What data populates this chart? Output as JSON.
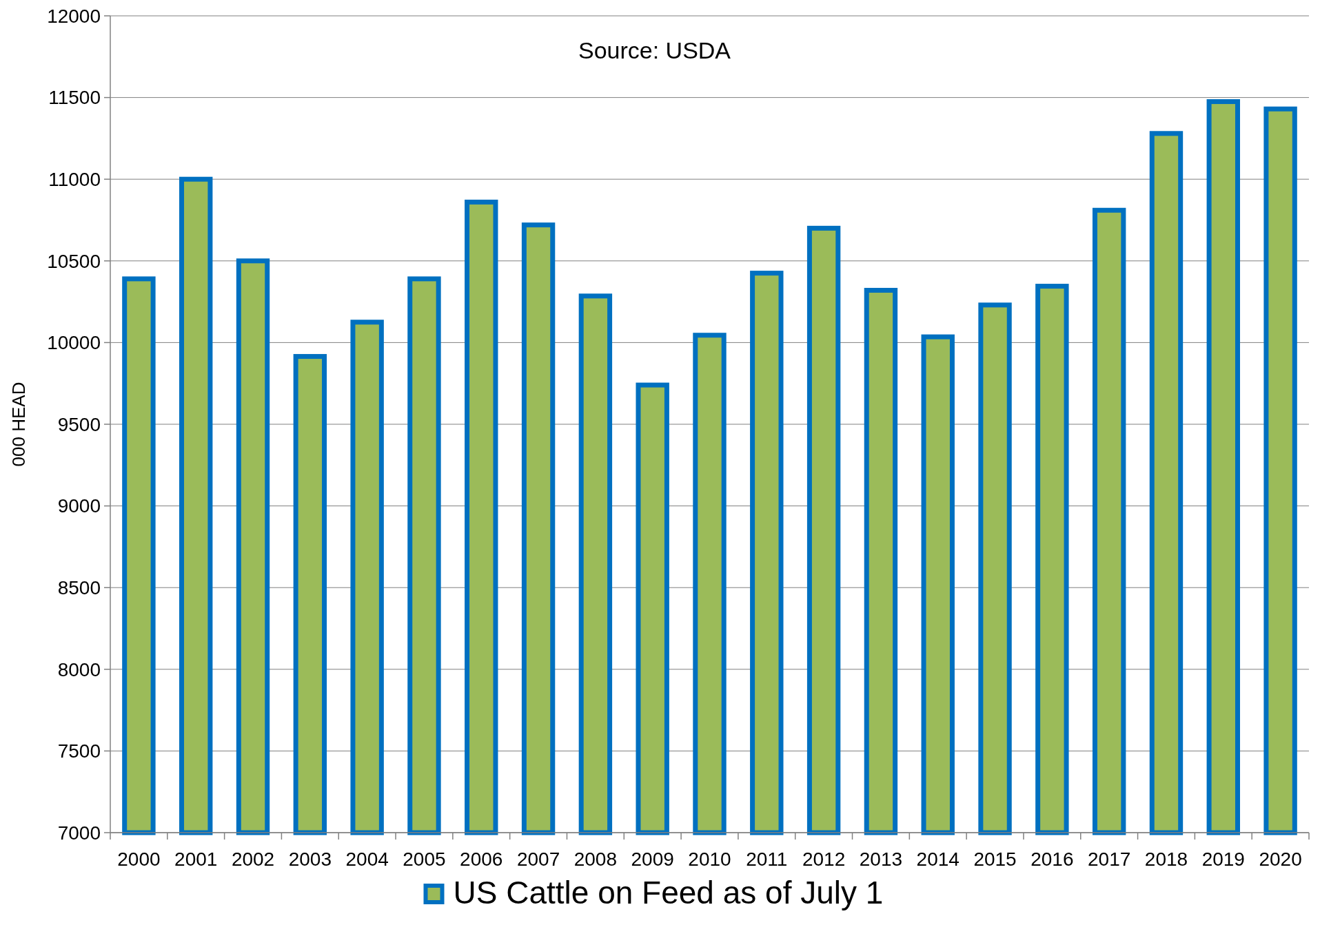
{
  "chart_data": {
    "type": "bar",
    "ylabel": "000 HEAD",
    "annotations": [
      "Source: USDA"
    ],
    "categories": [
      "2000",
      "2001",
      "2002",
      "2003",
      "2004",
      "2005",
      "2006",
      "2007",
      "2008",
      "2009",
      "2010",
      "2011",
      "2012",
      "2013",
      "2014",
      "2015",
      "2016",
      "2017",
      "2018",
      "2019",
      "2020"
    ],
    "series": [
      {
        "name": "US Cattle on Feed as of July 1",
        "color": "#9bbb59",
        "values": [
          10390,
          11000,
          10500,
          9915,
          10125,
          10390,
          10860,
          10720,
          10285,
          9740,
          10045,
          10425,
          10700,
          10320,
          10035,
          10230,
          10345,
          10810,
          11280,
          11475,
          11430
        ]
      }
    ],
    "ylim": [
      7000,
      12000
    ],
    "yticks": [
      7000,
      7500,
      8000,
      8500,
      9000,
      9500,
      10000,
      10500,
      11000,
      11500,
      12000
    ],
    "grid": "y",
    "legend": "bottom"
  }
}
